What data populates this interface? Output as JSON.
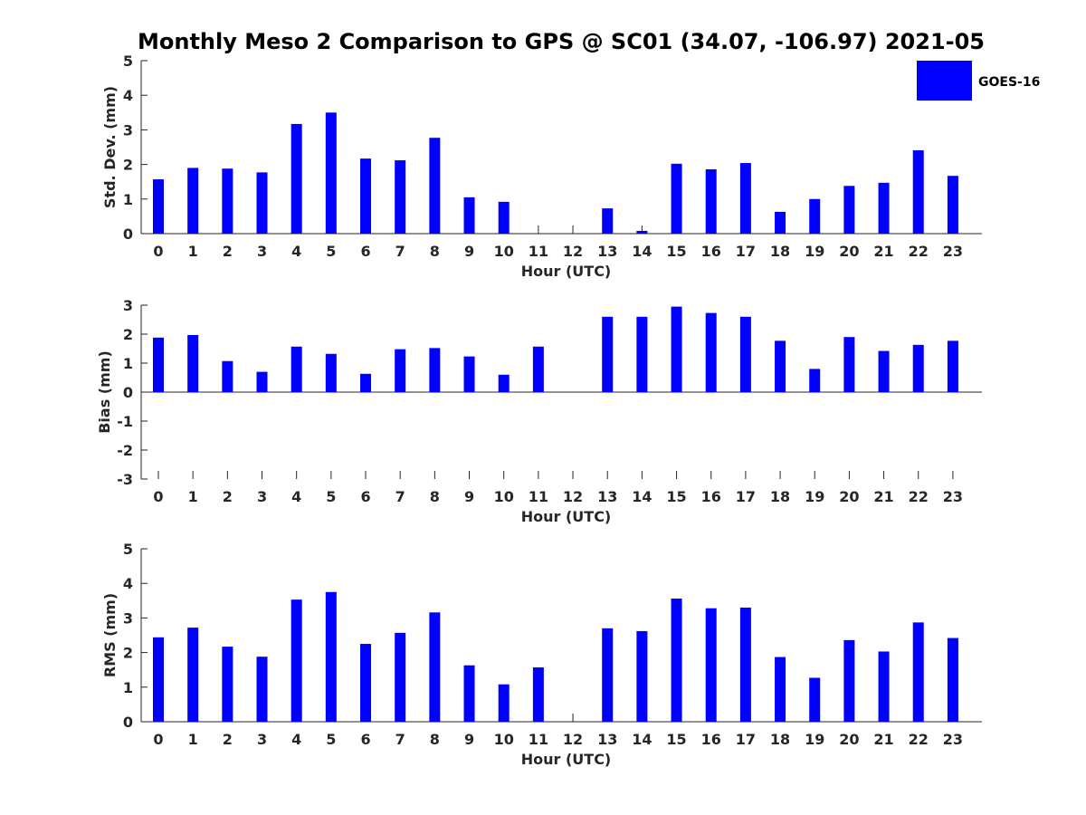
{
  "title": "Monthly Meso 2 Comparison to GPS @ SC01 (34.07, -106.97) 2021-05",
  "legend": {
    "label": "GOES-16",
    "color": "#0000ff"
  },
  "chart_data": [
    {
      "type": "bar",
      "xlabel": "Hour (UTC)",
      "ylabel": "Std. Dev. (mm)",
      "ylim": [
        0,
        5
      ],
      "yticks": [
        0,
        1,
        2,
        3,
        4,
        5
      ],
      "categories": [
        "0",
        "1",
        "2",
        "3",
        "4",
        "5",
        "6",
        "7",
        "8",
        "9",
        "10",
        "11",
        "12",
        "13",
        "14",
        "15",
        "16",
        "17",
        "18",
        "19",
        "20",
        "21",
        "22",
        "23"
      ],
      "series": [
        {
          "name": "GOES-16",
          "color": "#0000ff",
          "values": [
            1.57,
            1.9,
            1.88,
            1.77,
            3.17,
            3.5,
            2.17,
            2.12,
            2.77,
            1.05,
            0.92,
            0,
            0,
            0.73,
            0.08,
            2.02,
            1.86,
            2.04,
            0.63,
            1.0,
            1.38,
            1.47,
            2.41,
            1.67
          ]
        }
      ],
      "grid": false
    },
    {
      "type": "bar",
      "xlabel": "Hour (UTC)",
      "ylabel": "Bias (mm)",
      "ylim": [
        -3,
        3
      ],
      "yticks": [
        -3,
        -2,
        -1,
        0,
        1,
        2,
        3
      ],
      "categories": [
        "0",
        "1",
        "2",
        "3",
        "4",
        "5",
        "6",
        "7",
        "8",
        "9",
        "10",
        "11",
        "12",
        "13",
        "14",
        "15",
        "16",
        "17",
        "18",
        "19",
        "20",
        "21",
        "22",
        "23"
      ],
      "series": [
        {
          "name": "GOES-16",
          "color": "#0000ff",
          "values": [
            1.88,
            1.97,
            1.07,
            0.7,
            1.57,
            1.32,
            0.63,
            1.48,
            1.52,
            1.23,
            0.6,
            1.57,
            0,
            2.6,
            2.6,
            2.95,
            2.73,
            2.6,
            1.77,
            0.8,
            1.9,
            1.42,
            1.63,
            1.77
          ]
        }
      ],
      "grid": false
    },
    {
      "type": "bar",
      "xlabel": "Hour (UTC)",
      "ylabel": "RMS (mm)",
      "ylim": [
        0,
        5
      ],
      "yticks": [
        0,
        1,
        2,
        3,
        4,
        5
      ],
      "categories": [
        "0",
        "1",
        "2",
        "3",
        "4",
        "5",
        "6",
        "7",
        "8",
        "9",
        "10",
        "11",
        "12",
        "13",
        "14",
        "15",
        "16",
        "17",
        "18",
        "19",
        "20",
        "21",
        "22",
        "23"
      ],
      "series": [
        {
          "name": "GOES-16",
          "color": "#0000ff",
          "values": [
            2.44,
            2.72,
            2.17,
            1.88,
            3.53,
            3.75,
            2.25,
            2.57,
            3.16,
            1.63,
            1.08,
            1.57,
            0,
            2.7,
            2.62,
            3.56,
            3.28,
            3.3,
            1.87,
            1.27,
            2.36,
            2.03,
            2.87,
            2.42
          ]
        }
      ],
      "grid": false
    }
  ]
}
